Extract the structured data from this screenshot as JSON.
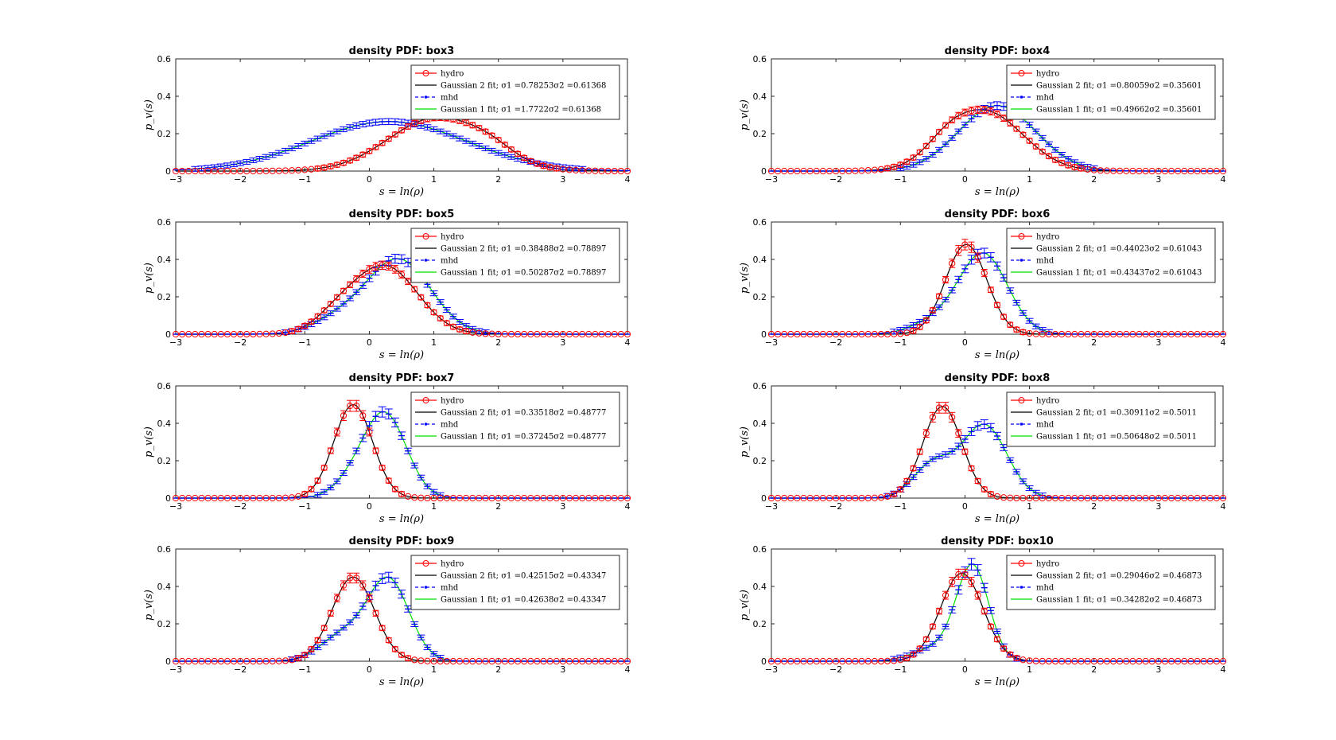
{
  "figure": {
    "background": "#ffffff",
    "colors": {
      "hydro": "#ff0000",
      "gauss2": "#000000",
      "mhd": "#0000ff",
      "gauss1": "#00dd00"
    }
  },
  "chart_data": [
    {
      "type": "line",
      "title": "density PDF: box3",
      "xlabel": "s = ln(ρ)",
      "ylabel": "p_v(s)",
      "xlim": [
        -3,
        4
      ],
      "ylim": [
        0,
        0.6
      ],
      "xticks": [
        "-3",
        "-2",
        "-1",
        "0",
        "1",
        "2",
        "3",
        "4"
      ],
      "yticks": [
        "0",
        "0.2",
        "0.4",
        "0.6"
      ],
      "legend_position": "top-right",
      "series": [
        {
          "name": "hydro",
          "marker": "circle",
          "color": "#ff0000",
          "mu": 1.05,
          "sigma": 0.75,
          "amp": 0.285,
          "shoulder": {
            "x": 1.9,
            "w": 0.35,
            "a": 0.04
          }
        },
        {
          "name": "Gaussian 2 fit; σ1 =0.78253σ2 =0.61368",
          "color": "#000000",
          "mu": 1.05,
          "sigma": 0.75,
          "amp": 0.285,
          "shoulder": {
            "x": 1.9,
            "w": 0.35,
            "a": 0.04
          }
        },
        {
          "name": "mhd",
          "marker": "point",
          "color": "#0000ff",
          "mu": 0.3,
          "sigma": 1.2,
          "amp": 0.265
        },
        {
          "name": "Gaussian 1 fit; σ1 =1.7722σ2 =0.61368",
          "color": "#00dd00",
          "mu": 0.3,
          "sigma": 1.2,
          "amp": 0.265
        }
      ]
    },
    {
      "type": "line",
      "title": "density PDF: box4",
      "xlabel": "s = ln(ρ)",
      "ylabel": "p_v(s)",
      "xlim": [
        -3,
        4
      ],
      "ylim": [
        0,
        0.6
      ],
      "xticks": [
        "-3",
        "-2",
        "-1",
        "0",
        "1",
        "2",
        "3",
        "4"
      ],
      "yticks": [
        "0",
        "0.2",
        "0.4",
        "0.6"
      ],
      "legend_position": "top-right",
      "series": [
        {
          "name": "hydro",
          "marker": "circle",
          "color": "#ff0000",
          "mu": 0.3,
          "sigma": 0.6,
          "amp": 0.32,
          "shoulder": {
            "x": -0.3,
            "w": 0.3,
            "a": 0.05
          }
        },
        {
          "name": "Gaussian 2 fit; σ1 =0.80059σ2 =0.35601",
          "color": "#000000",
          "mu": 0.3,
          "sigma": 0.6,
          "amp": 0.32,
          "shoulder": {
            "x": -0.3,
            "w": 0.3,
            "a": 0.05
          }
        },
        {
          "name": "mhd",
          "marker": "point",
          "color": "#0000ff",
          "mu": 0.5,
          "sigma": 0.6,
          "amp": 0.35
        },
        {
          "name": "Gaussian 1 fit; σ1 =0.49662σ2 =0.35601",
          "color": "#00dd00",
          "mu": 0.5,
          "sigma": 0.6,
          "amp": 0.35
        }
      ]
    },
    {
      "type": "line",
      "title": "density PDF: box5",
      "xlabel": "s = ln(ρ)",
      "ylabel": "p_v(s)",
      "xlim": [
        -3,
        4
      ],
      "ylim": [
        0,
        0.6
      ],
      "xticks": [
        "-3",
        "-2",
        "-1",
        "0",
        "1",
        "2",
        "3",
        "4"
      ],
      "yticks": [
        "0",
        "0.2",
        "0.4",
        "0.6"
      ],
      "legend_position": "top-right",
      "series": [
        {
          "name": "hydro",
          "marker": "circle",
          "color": "#ff0000",
          "mu": 0.25,
          "sigma": 0.5,
          "amp": 0.36,
          "shoulder": {
            "x": -0.5,
            "w": 0.35,
            "a": 0.08
          }
        },
        {
          "name": "Gaussian 2 fit; σ1 =0.38488σ2 =0.78897",
          "color": "#000000",
          "mu": 0.25,
          "sigma": 0.5,
          "amp": 0.36,
          "shoulder": {
            "x": -0.5,
            "w": 0.35,
            "a": 0.08
          }
        },
        {
          "name": "mhd",
          "marker": "point",
          "color": "#0000ff",
          "mu": 0.45,
          "sigma": 0.5,
          "amp": 0.4,
          "shoulder": {
            "x": -0.5,
            "w": 0.4,
            "a": 0.07
          }
        },
        {
          "name": "Gaussian 1 fit; σ1 =0.50287σ2 =0.78897",
          "color": "#00dd00",
          "mu": 0.45,
          "sigma": 0.5,
          "amp": 0.4,
          "shoulder": {
            "x": -0.5,
            "w": 0.4,
            "a": 0.07
          }
        }
      ]
    },
    {
      "type": "line",
      "title": "density PDF: box6",
      "xlabel": "s = ln(ρ)",
      "ylabel": "p_v(s)",
      "xlim": [
        -3,
        4
      ],
      "ylim": [
        0,
        0.6
      ],
      "xticks": [
        "-3",
        "-2",
        "-1",
        "0",
        "1",
        "2",
        "3",
        "4"
      ],
      "yticks": [
        "0",
        "0.2",
        "0.4",
        "0.6"
      ],
      "legend_position": "top-right",
      "series": [
        {
          "name": "hydro",
          "marker": "circle",
          "color": "#ff0000",
          "mu": 0.02,
          "sigma": 0.32,
          "amp": 0.48
        },
        {
          "name": "Gaussian 2 fit; σ1 =0.44023σ2 =0.61043",
          "color": "#000000",
          "mu": 0.02,
          "sigma": 0.32,
          "amp": 0.48
        },
        {
          "name": "mhd",
          "marker": "point",
          "color": "#0000ff",
          "mu": 0.28,
          "sigma": 0.38,
          "amp": 0.43,
          "shoulder": {
            "x": -0.5,
            "w": 0.35,
            "a": 0.06
          }
        },
        {
          "name": "Gaussian 1 fit; σ1 =0.43437σ2 =0.61043",
          "color": "#00dd00",
          "mu": 0.28,
          "sigma": 0.38,
          "amp": 0.43,
          "shoulder": {
            "x": -0.5,
            "w": 0.35,
            "a": 0.06
          }
        }
      ]
    },
    {
      "type": "line",
      "title": "density PDF: box7",
      "xlabel": "s = ln(ρ)",
      "ylabel": "p_v(s)",
      "xlim": [
        -3,
        4
      ],
      "ylim": [
        0,
        0.6
      ],
      "xticks": [
        "-3",
        "-2",
        "-1",
        "0",
        "1",
        "2",
        "3",
        "4"
      ],
      "yticks": [
        "0",
        "0.2",
        "0.4",
        "0.6"
      ],
      "legend_position": "top-right",
      "series": [
        {
          "name": "hydro",
          "marker": "circle",
          "color": "#ff0000",
          "mu": -0.25,
          "sigma": 0.3,
          "amp": 0.5
        },
        {
          "name": "Gaussian 2 fit; σ1 =0.33518σ2 =0.48777",
          "color": "#000000",
          "mu": -0.25,
          "sigma": 0.3,
          "amp": 0.5
        },
        {
          "name": "mhd",
          "marker": "point",
          "color": "#0000ff",
          "mu": 0.25,
          "sigma": 0.33,
          "amp": 0.44,
          "shoulder": {
            "x": -0.25,
            "w": 0.3,
            "a": 0.08
          }
        },
        {
          "name": "Gaussian 1 fit; σ1 =0.37245σ2 =0.48777",
          "color": "#00dd00",
          "mu": 0.25,
          "sigma": 0.33,
          "amp": 0.44,
          "shoulder": {
            "x": -0.25,
            "w": 0.3,
            "a": 0.08
          }
        }
      ]
    },
    {
      "type": "line",
      "title": "density PDF: box8",
      "xlabel": "s = ln(ρ)",
      "ylabel": "p_v(s)",
      "xlim": [
        -3,
        4
      ],
      "ylim": [
        0,
        0.6
      ],
      "xticks": [
        "-3",
        "-2",
        "-1",
        "0",
        "1",
        "2",
        "3",
        "4"
      ],
      "yticks": [
        "0",
        "0.2",
        "0.4",
        "0.6"
      ],
      "legend_position": "top-right",
      "series": [
        {
          "name": "hydro",
          "marker": "circle",
          "color": "#ff0000",
          "mu": -0.35,
          "sigma": 0.3,
          "amp": 0.49
        },
        {
          "name": "Gaussian 2 fit; σ1 =0.30911σ2 =0.5011",
          "color": "#000000",
          "mu": -0.35,
          "sigma": 0.3,
          "amp": 0.49
        },
        {
          "name": "mhd",
          "marker": "point",
          "color": "#0000ff",
          "mu": 0.3,
          "sigma": 0.35,
          "amp": 0.39,
          "shoulder": {
            "x": -0.5,
            "w": 0.3,
            "a": 0.18
          }
        },
        {
          "name": "Gaussian 1 fit; σ1 =0.50648σ2 =0.5011",
          "color": "#00dd00",
          "mu": 0.3,
          "sigma": 0.35,
          "amp": 0.39,
          "shoulder": {
            "x": -0.5,
            "w": 0.3,
            "a": 0.18
          }
        }
      ]
    },
    {
      "type": "line",
      "title": "density PDF: box9",
      "xlabel": "s = ln(ρ)",
      "ylabel": "p_v(s)",
      "xlim": [
        -3,
        4
      ],
      "ylim": [
        0,
        0.6
      ],
      "xticks": [
        "-3",
        "-2",
        "-1",
        "0",
        "1",
        "2",
        "3",
        "4"
      ],
      "yticks": [
        "0",
        "0.2",
        "0.4",
        "0.6"
      ],
      "legend_position": "top-right",
      "series": [
        {
          "name": "hydro",
          "marker": "circle",
          "color": "#ff0000",
          "mu": -0.25,
          "sigma": 0.33,
          "amp": 0.45
        },
        {
          "name": "Gaussian 2 fit; σ1 =0.42515σ2 =0.43347",
          "color": "#000000",
          "mu": -0.25,
          "sigma": 0.33,
          "amp": 0.45
        },
        {
          "name": "mhd",
          "marker": "point",
          "color": "#0000ff",
          "mu": 0.3,
          "sigma": 0.32,
          "amp": 0.43,
          "shoulder": {
            "x": -0.4,
            "w": 0.35,
            "a": 0.14
          }
        },
        {
          "name": "Gaussian 1 fit; σ1 =0.42638σ2 =0.43347",
          "color": "#00dd00",
          "mu": 0.3,
          "sigma": 0.32,
          "amp": 0.43,
          "shoulder": {
            "x": -0.4,
            "w": 0.35,
            "a": 0.14
          }
        }
      ]
    },
    {
      "type": "line",
      "title": "density PDF: box10",
      "xlabel": "s = ln(ρ)",
      "ylabel": "p_v(s)",
      "xlim": [
        -3,
        4
      ],
      "ylim": [
        0,
        0.6
      ],
      "xticks": [
        "-3",
        "-2",
        "-1",
        "0",
        "1",
        "2",
        "3",
        "4"
      ],
      "yticks": [
        "0",
        "0.2",
        "0.4",
        "0.6"
      ],
      "legend_position": "top-right",
      "series": [
        {
          "name": "hydro",
          "marker": "circle",
          "color": "#ff0000",
          "mu": -0.05,
          "sigma": 0.33,
          "amp": 0.47
        },
        {
          "name": "Gaussian 2 fit; σ1 =0.29046σ2 =0.46873",
          "color": "#000000",
          "mu": -0.05,
          "sigma": 0.33,
          "amp": 0.47
        },
        {
          "name": "mhd",
          "marker": "point",
          "color": "#0000ff",
          "mu": 0.12,
          "sigma": 0.25,
          "amp": 0.5,
          "shoulder": {
            "x": -0.45,
            "w": 0.35,
            "a": 0.07
          }
        },
        {
          "name": "Gaussian 1 fit; σ1 =0.34282σ2 =0.46873",
          "color": "#00dd00",
          "mu": 0.12,
          "sigma": 0.25,
          "amp": 0.5,
          "shoulder": {
            "x": -0.45,
            "w": 0.35,
            "a": 0.07
          }
        }
      ]
    }
  ]
}
